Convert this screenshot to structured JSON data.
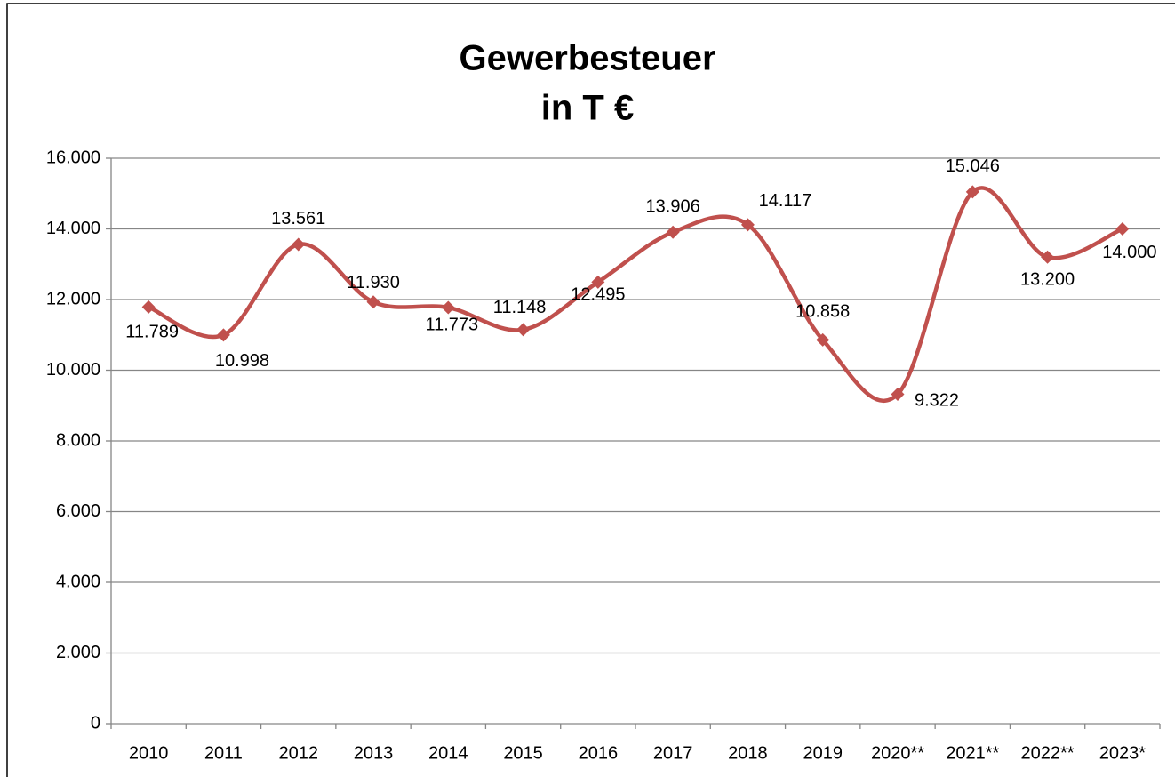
{
  "chart_data": {
    "type": "line",
    "title": [
      "Gewerbesteuer",
      "in T €"
    ],
    "categories": [
      "2010",
      "2011",
      "2012",
      "2013",
      "2014",
      "2015",
      "2016",
      "2017",
      "2018",
      "2019",
      "2020**",
      "2021**",
      "2022**",
      "2023*"
    ],
    "series": [
      {
        "color": "#c0504d",
        "values": [
          11789,
          10998,
          13561,
          11930,
          11773,
          11148,
          12495,
          13906,
          14117,
          10858,
          9322,
          15046,
          13200,
          14000
        ],
        "value_labels": [
          "11.789",
          "10.998",
          "13.561",
          "11.930",
          "11.773",
          "11.148",
          "12.495",
          "13.906",
          "14.117",
          "10.858",
          "9.322",
          "15.046",
          "13.200",
          "14.000"
        ]
      }
    ],
    "ylim": [
      0,
      16000
    ],
    "yticks": [
      0,
      {
        "value": 2000,
        "label": "2.000"
      },
      {
        "value": 4000,
        "label": "4.000"
      },
      {
        "value": 6000,
        "label": "6.000"
      },
      {
        "value": 8000,
        "label": "8.000"
      },
      {
        "value": 10000,
        "label": "10.000"
      },
      {
        "value": 12000,
        "label": "12.000"
      },
      {
        "value": 14000,
        "label": "14.000"
      },
      {
        "value": 16000,
        "label": "16.000"
      }
    ],
    "grid": true,
    "smooth": true
  }
}
